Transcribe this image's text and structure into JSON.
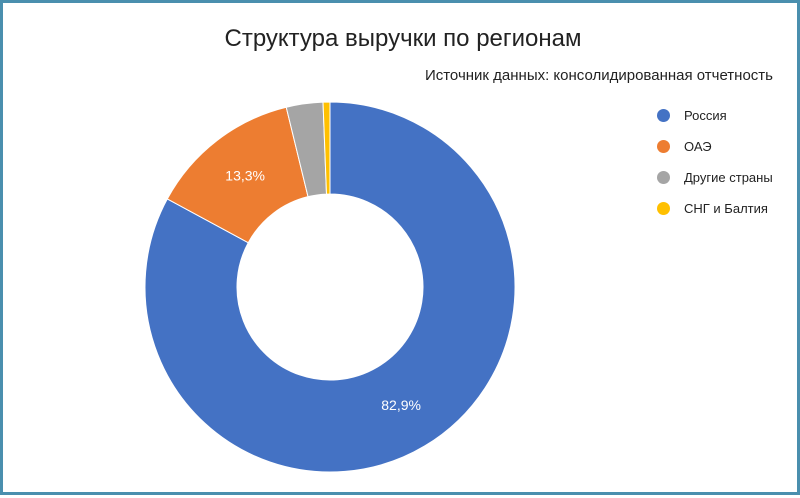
{
  "chart_data": {
    "type": "pie",
    "title": "Структура выручки по регионам",
    "subtitle": "Источник данных: консолидированная отчетность",
    "donut": true,
    "categories": [
      "Россия",
      "ОАЭ",
      "Другие страны",
      "СНГ и Балтия"
    ],
    "values": [
      82.9,
      13.3,
      3.2,
      0.6
    ],
    "unit": "%",
    "data_labels": [
      "82,9%",
      "13,3%",
      "",
      ""
    ],
    "colors": [
      "#4472c4",
      "#ed7d31",
      "#a5a5a5",
      "#ffc000"
    ],
    "legend_position": "right"
  }
}
